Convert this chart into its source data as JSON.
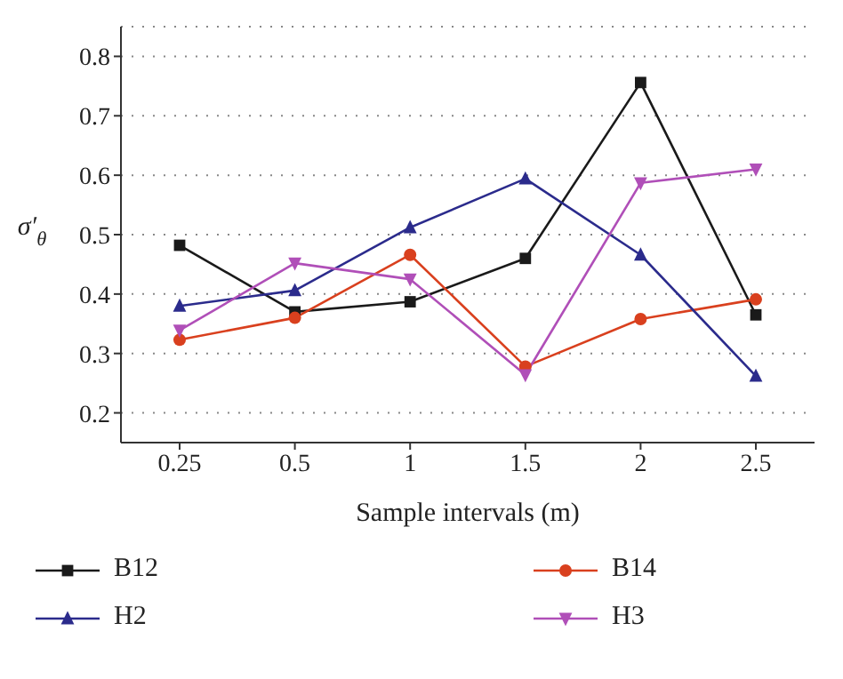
{
  "chart_data": {
    "type": "line",
    "xlabel": "Sample intervals (m)",
    "ylabel": "σ′$_{θ}$",
    "categories": [
      "0.25",
      "0.5",
      "1",
      "1.5",
      "2",
      "2.5"
    ],
    "series": [
      {
        "name": "B12",
        "color": "#1a1a1a",
        "marker": "square",
        "values": [
          0.482,
          0.37,
          0.387,
          0.46,
          0.756,
          0.365
        ]
      },
      {
        "name": "B14",
        "color": "#d9401e",
        "marker": "circle",
        "values": [
          0.323,
          0.36,
          0.466,
          0.278,
          0.358,
          0.391
        ]
      },
      {
        "name": "H2",
        "color": "#2b2b8c",
        "marker": "triangle",
        "values": [
          0.38,
          0.406,
          0.512,
          0.594,
          0.466,
          0.262
        ]
      },
      {
        "name": "H3",
        "color": "#b04fb8",
        "marker": "triangle-down",
        "values": [
          0.339,
          0.452,
          0.425,
          0.264,
          0.587,
          0.61
        ]
      }
    ],
    "ylim": [
      0.15,
      0.85
    ],
    "yticks": [
      0.2,
      0.3,
      0.4,
      0.5,
      0.6,
      0.7,
      0.8
    ],
    "grid": "y",
    "legend": "bottom",
    "line_style": "solid"
  }
}
